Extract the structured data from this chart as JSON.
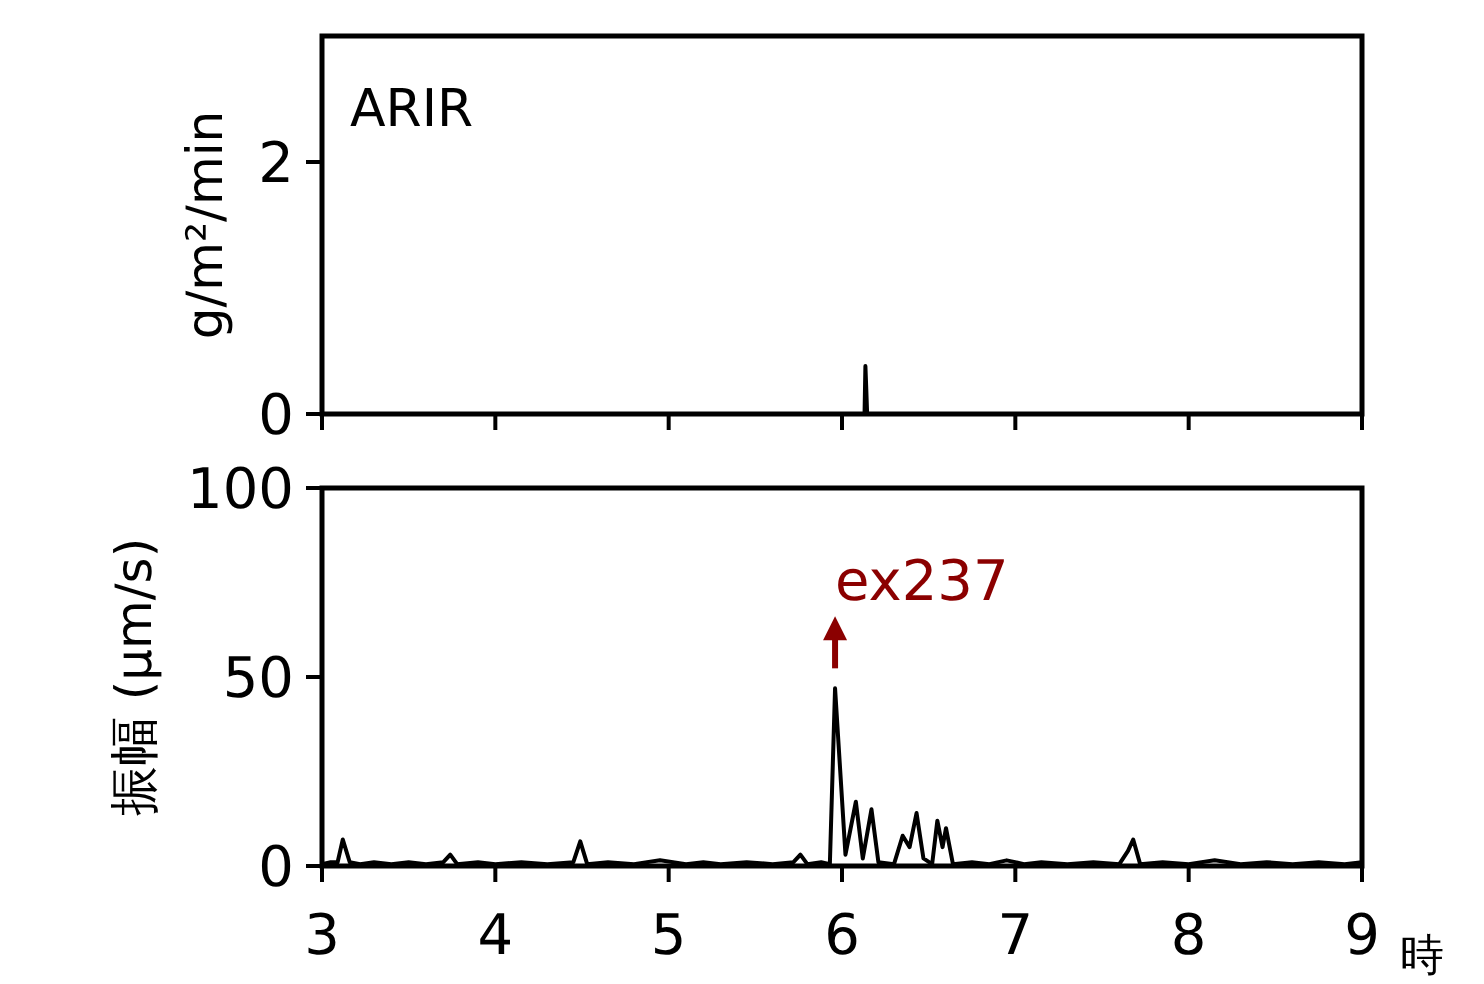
{
  "chart_data": [
    {
      "type": "line",
      "ylabel": "g/m²/min",
      "annotations": [
        "ARIR"
      ],
      "xlim": [
        3,
        9
      ],
      "xticks": [
        3,
        4,
        5,
        6,
        7,
        8,
        9
      ],
      "ylim": [
        0,
        3
      ],
      "yticks": [
        0,
        2
      ],
      "tick_labels": "y",
      "x": [
        6.13,
        6.135,
        6.14,
        6.145
      ],
      "series": [
        {
          "color": "#000000",
          "values": [
            0,
            0.38,
            0.2,
            0
          ]
        }
      ]
    },
    {
      "type": "line",
      "ylabel": "振幅 (μm/s)",
      "xlabel": "時",
      "annotations": [
        {
          "text": "ex237",
          "x": 5.96,
          "y": 47
        }
      ],
      "xlim": [
        3,
        9
      ],
      "xticks": [
        3,
        4,
        5,
        6,
        7,
        8,
        9
      ],
      "ylim": [
        0,
        100
      ],
      "yticks": [
        0,
        50,
        100
      ],
      "x": [
        3.0,
        3.05,
        3.09,
        3.12,
        3.16,
        3.22,
        3.3,
        3.4,
        3.5,
        3.6,
        3.7,
        3.74,
        3.78,
        3.9,
        4.0,
        4.15,
        4.3,
        4.45,
        4.49,
        4.53,
        4.65,
        4.8,
        4.95,
        5.1,
        5.2,
        5.3,
        5.45,
        5.6,
        5.72,
        5.76,
        5.8,
        5.88,
        5.93,
        5.96,
        6.02,
        6.08,
        6.12,
        6.17,
        6.21,
        6.3,
        6.35,
        6.39,
        6.43,
        6.47,
        6.52,
        6.55,
        6.58,
        6.6,
        6.64,
        6.75,
        6.85,
        6.95,
        7.05,
        7.15,
        7.3,
        7.45,
        7.6,
        7.65,
        7.68,
        7.72,
        7.85,
        8.0,
        8.15,
        8.3,
        8.45,
        8.6,
        8.75,
        8.9,
        9.0
      ],
      "series": [
        {
          "color": "#000000",
          "values": [
            0.5,
            1,
            1,
            7,
            1,
            0.5,
            1,
            0.5,
            1,
            0.5,
            1,
            3,
            0.5,
            1,
            0.5,
            1,
            0.5,
            1,
            6.5,
            0.5,
            1,
            0.5,
            1.5,
            0.5,
            1,
            0.5,
            1,
            0.5,
            1,
            3,
            0.5,
            1,
            0.5,
            47,
            3,
            17,
            2,
            15,
            1,
            0.5,
            8,
            5,
            14,
            2,
            0.5,
            12,
            5,
            10,
            0.5,
            1,
            0.5,
            1.5,
            0.5,
            1,
            0.5,
            1,
            0.5,
            4,
            7,
            0.5,
            1,
            0.5,
            1.5,
            0.5,
            1,
            0.5,
            1,
            0.5,
            1
          ]
        }
      ]
    }
  ]
}
